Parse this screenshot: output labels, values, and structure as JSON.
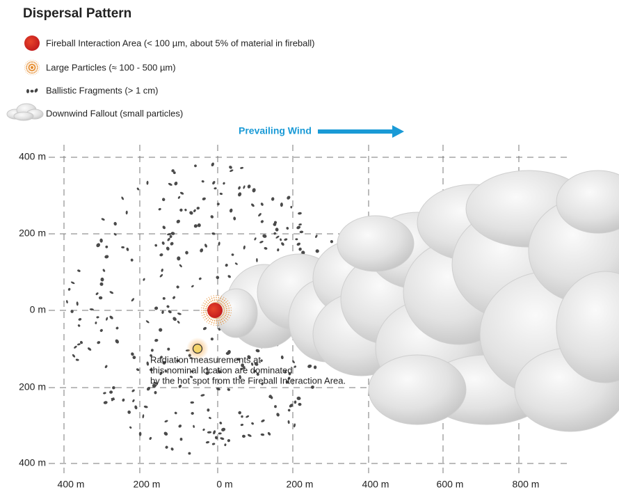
{
  "title": "Dispersal Pattern",
  "legend": [
    {
      "label": "Fireball Interaction Area (< 100 µm, about 5% of material in fireball)"
    },
    {
      "label": "Large Particles (≈ 100 - 500 µm)"
    },
    {
      "label": "Ballistic Fragments (> 1 cm)"
    },
    {
      "label": "Downwind Fallout (small particles)"
    }
  ],
  "wind_label": "Prevailing Wind",
  "x_axis_labels": [
    "400 m",
    "200 m",
    "0 m",
    "200 m",
    "400 m",
    "600 m",
    "800 m"
  ],
  "y_axis_labels": [
    "400 m",
    "200 m",
    "0 m",
    "200 m",
    "400 m"
  ],
  "annotation": {
    "lines": [
      "Radiation measurements at",
      "this nominal location are dominated",
      "by the hot spot from the Fireball Interaction Area."
    ]
  }
}
